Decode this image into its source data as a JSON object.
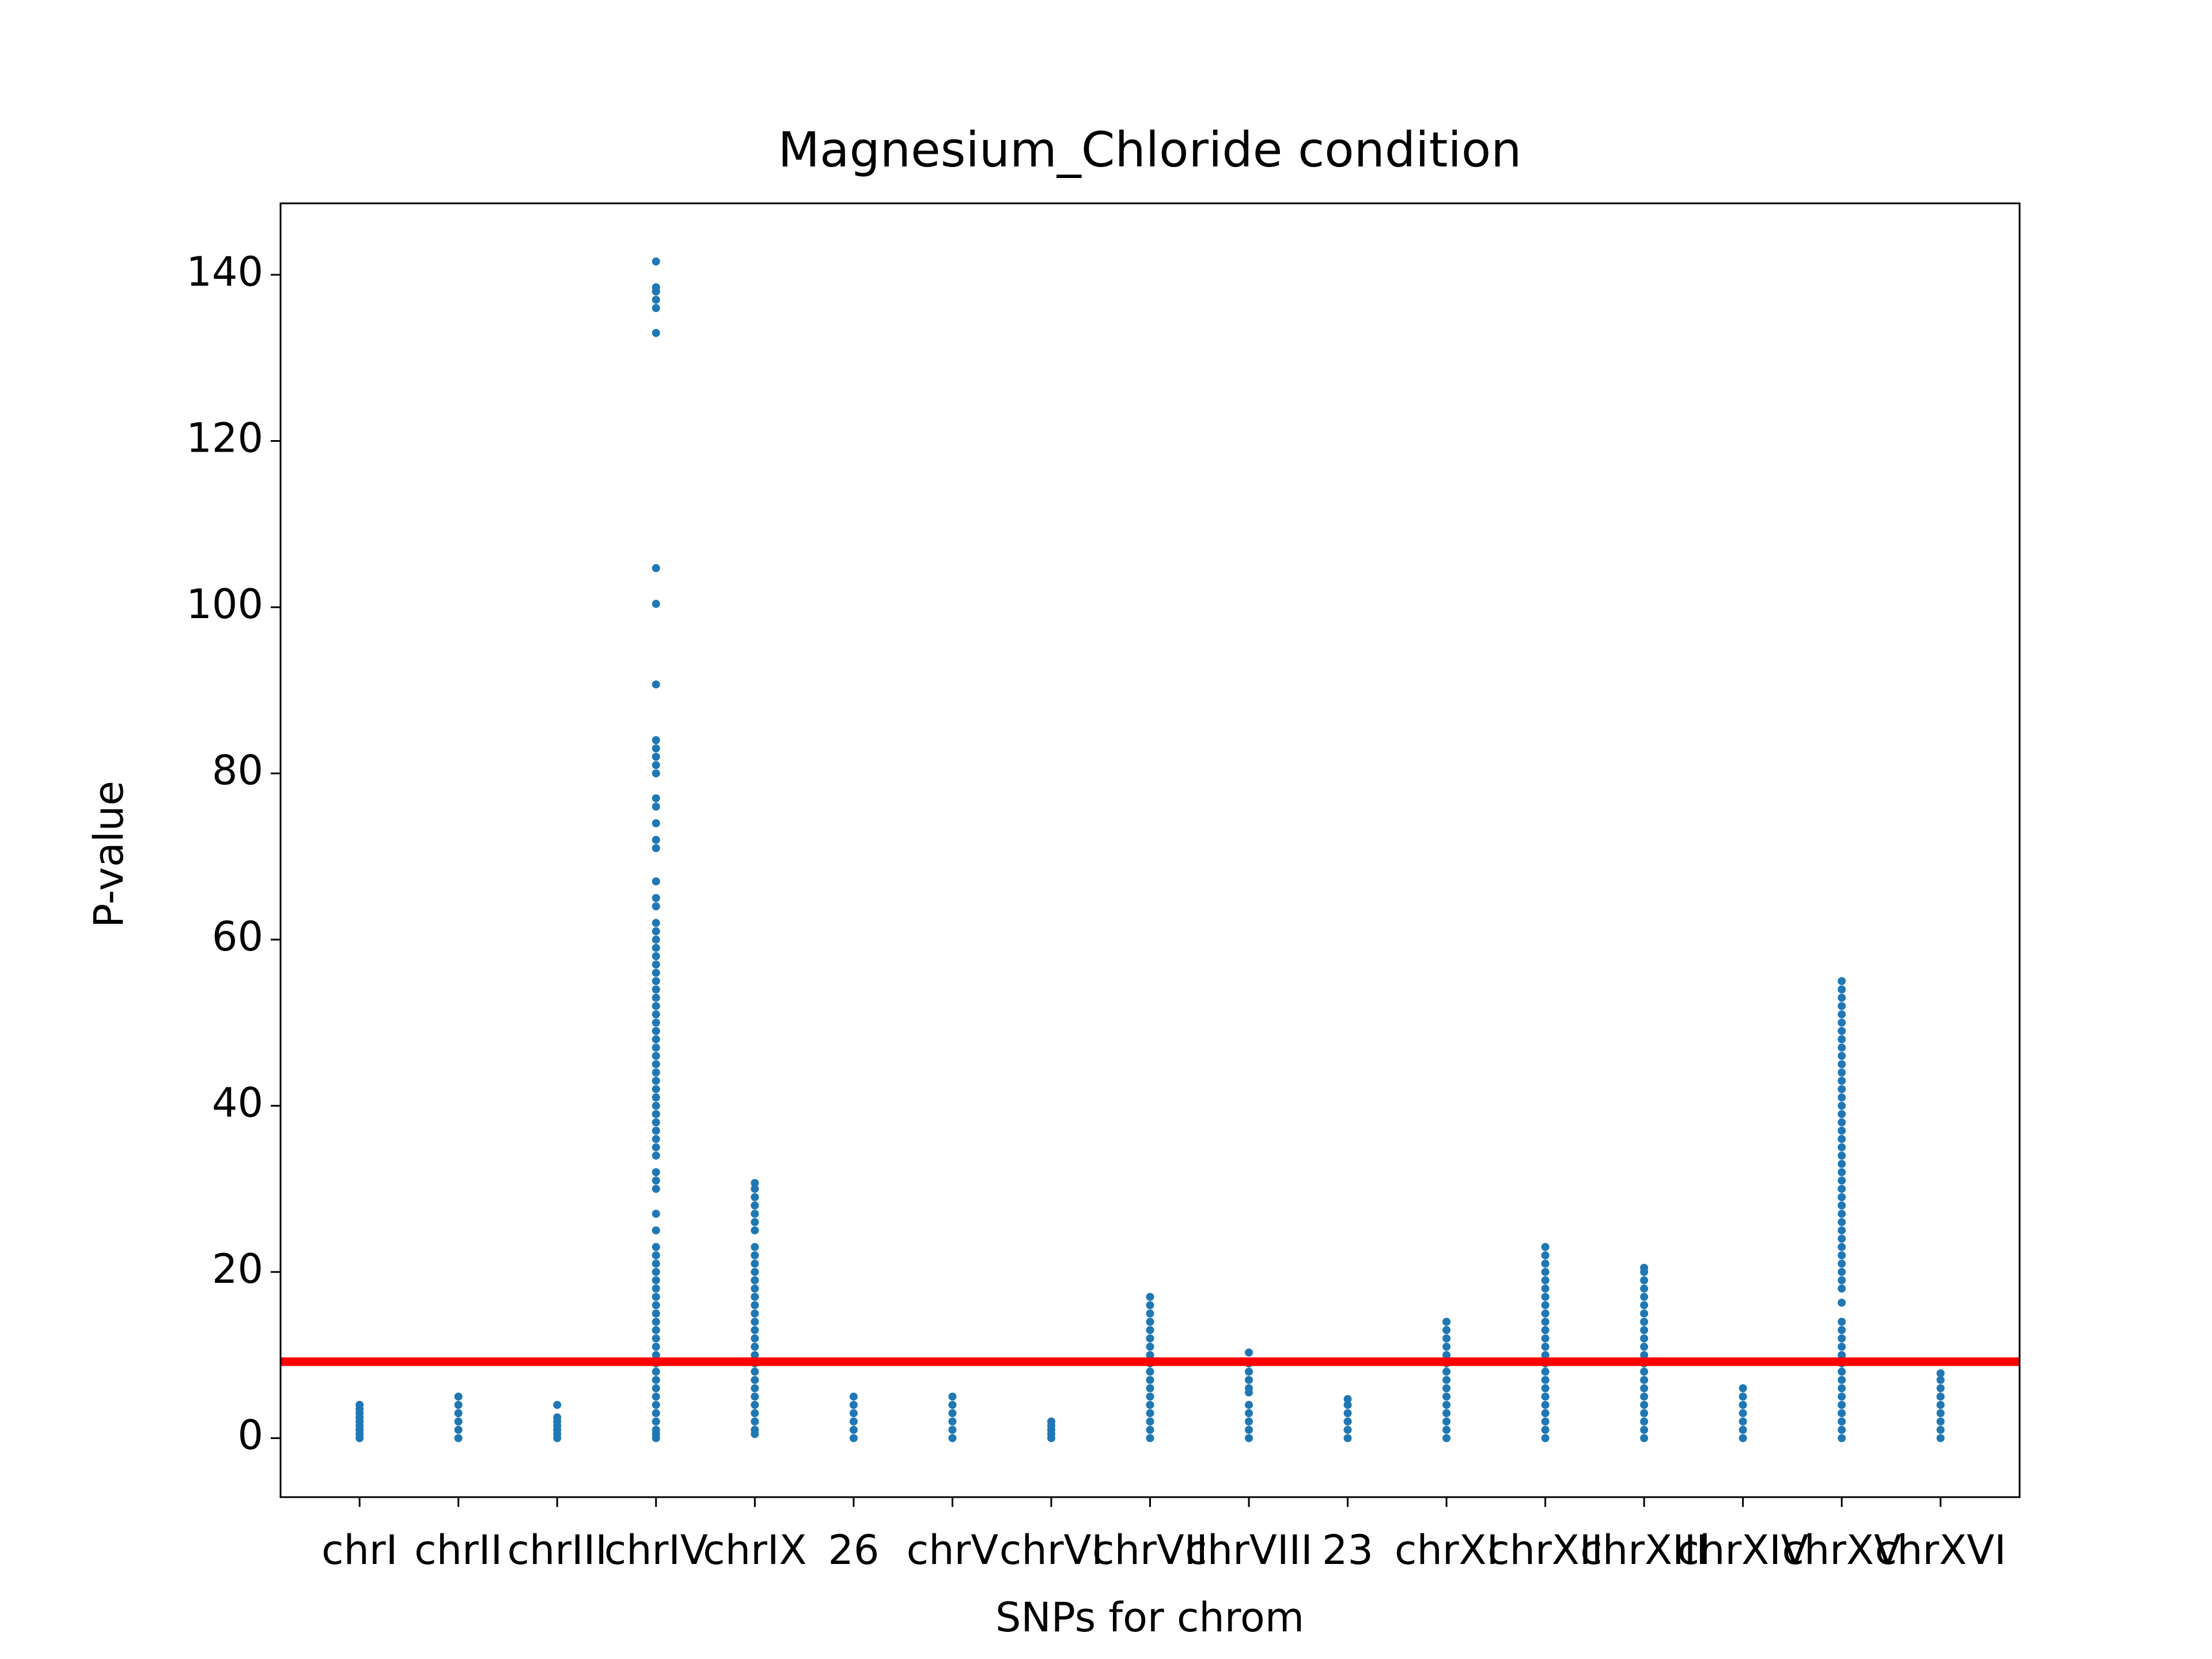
{
  "chart_data": {
    "type": "strip",
    "title": "Magnesium_Chloride condition",
    "x_label": "SNPs for chrom",
    "y_label": "P-value",
    "categories": [
      "chrI",
      "chrII",
      "chrIII",
      "chrIV",
      "chrIX",
      "26",
      "chrV",
      "chrVI",
      "chrVII",
      "chrVIII",
      "23",
      "chrXI",
      "chrXII",
      "chrXIII",
      "chrXIV",
      "chrXV",
      "chrXVI"
    ],
    "values": [
      [
        0,
        0.5,
        1,
        1.5,
        2,
        2.5,
        3,
        3.5,
        4
      ],
      [
        0,
        1,
        2,
        3,
        4,
        5
      ],
      [
        0,
        0.5,
        1,
        1.5,
        2,
        2.5,
        4
      ],
      [
        0,
        0.5,
        1,
        2,
        3,
        4,
        5,
        6,
        7,
        8,
        9,
        10,
        11,
        12,
        13,
        14,
        15,
        16,
        17,
        18,
        19,
        20,
        21,
        22,
        23,
        25,
        27,
        30,
        31,
        32,
        34,
        35,
        36,
        37,
        38,
        39,
        40,
        41,
        42,
        43,
        44,
        45,
        46,
        47,
        48,
        49,
        50,
        51,
        52,
        53,
        54,
        55,
        56,
        57,
        58,
        59,
        60,
        61,
        62,
        64,
        65,
        67,
        71,
        72,
        74,
        76,
        77,
        80,
        81,
        82,
        83,
        84,
        90.7,
        100.4,
        104.7,
        133,
        136,
        137,
        138,
        138.5,
        141.6
      ],
      [
        0.5,
        1,
        2,
        3,
        4,
        5,
        6,
        7,
        8,
        9,
        10,
        11,
        12,
        13,
        14,
        15,
        16,
        17,
        18,
        19,
        20,
        21,
        22,
        23,
        25,
        26,
        27,
        28,
        29,
        30,
        30.7
      ],
      [
        0,
        1,
        2,
        3,
        4,
        5
      ],
      [
        0,
        1,
        2,
        3,
        4,
        5
      ],
      [
        0,
        0.5,
        1,
        1.5,
        2
      ],
      [
        0,
        1,
        2,
        3,
        4,
        5,
        6,
        7,
        8,
        9,
        10,
        11,
        12,
        13,
        14,
        15,
        16,
        17
      ],
      [
        0,
        1,
        2,
        3,
        4,
        5.5,
        6,
        7,
        8,
        9,
        10.3
      ],
      [
        0,
        1,
        2,
        3,
        4,
        4.7
      ],
      [
        0,
        1,
        2,
        3,
        4,
        5,
        6,
        7,
        8,
        9,
        10,
        11,
        12,
        13,
        14
      ],
      [
        0,
        1,
        2,
        3,
        4,
        5,
        6,
        7,
        8,
        9,
        10,
        11,
        12,
        13,
        14,
        15,
        16,
        17,
        18,
        19,
        20,
        21,
        22,
        23
      ],
      [
        0,
        1,
        2,
        3,
        4,
        5,
        6,
        7,
        8,
        9,
        10,
        11,
        12,
        13,
        14,
        15,
        16,
        17,
        18,
        19,
        20,
        20.5
      ],
      [
        0,
        1,
        2,
        3,
        4,
        5,
        6
      ],
      [
        0,
        1,
        2,
        3,
        4,
        5,
        6,
        7,
        8,
        9,
        10,
        11,
        12,
        13,
        14,
        16.3,
        18,
        19,
        20,
        21,
        22,
        23,
        24,
        25,
        26,
        27,
        28,
        29,
        30,
        31,
        32,
        33,
        34,
        35,
        36,
        37,
        38,
        39,
        40,
        41,
        42,
        43,
        44,
        45,
        46,
        47,
        48,
        49,
        50,
        51,
        52,
        53,
        54,
        55
      ],
      [
        0,
        1,
        2,
        3,
        4,
        5,
        6,
        7,
        7.8
      ]
    ],
    "color": "#1f77b4",
    "threshold": 9.2,
    "threshold_color": "#ff0000",
    "ylim": [
      -7.1,
      148.6
    ],
    "yticks": [
      0,
      20,
      40,
      60,
      80,
      100,
      120,
      140
    ]
  }
}
